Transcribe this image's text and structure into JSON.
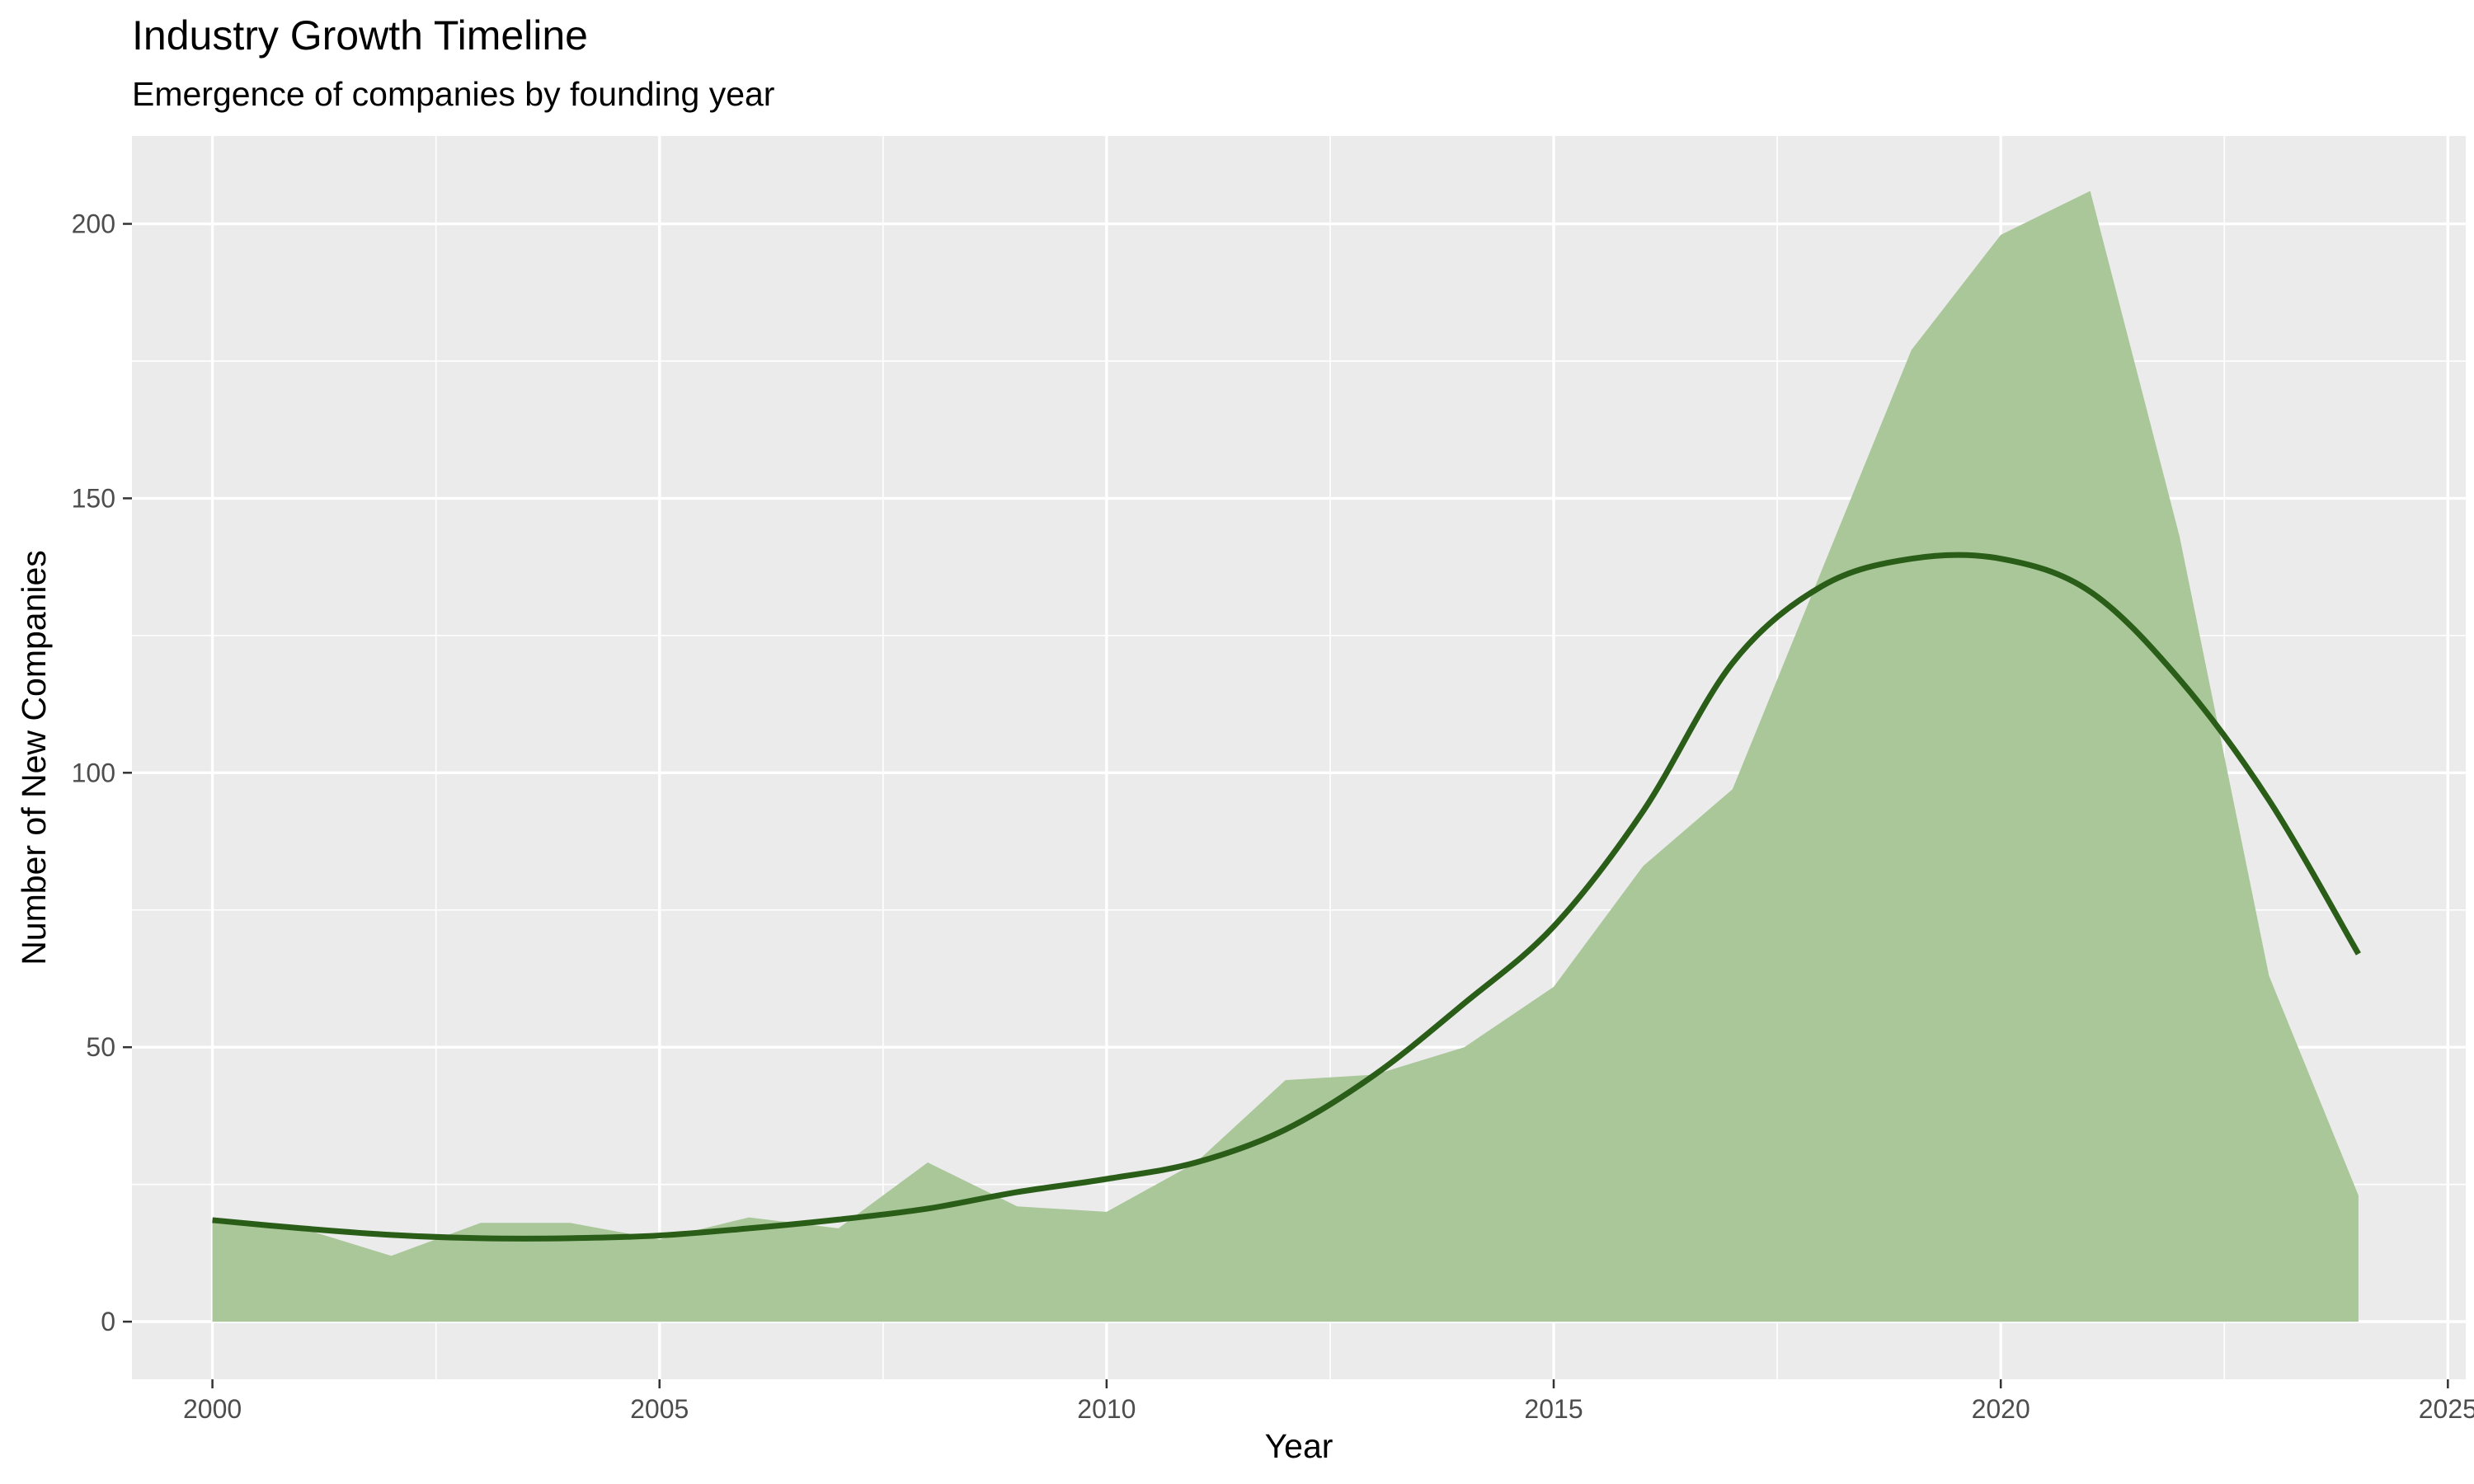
{
  "chart_data": {
    "type": "area",
    "title": "Industry Growth Timeline",
    "subtitle": "Emergence of companies by founding year",
    "xlabel": "Year",
    "ylabel": "Number of New Companies",
    "xlim": [
      1999.1,
      2025.2
    ],
    "ylim": [
      -10.5,
      216
    ],
    "x_ticks": [
      2000,
      2005,
      2010,
      2015,
      2020,
      2025
    ],
    "y_ticks": [
      0,
      50,
      100,
      150,
      200
    ],
    "grid": true,
    "legend": "none",
    "series": [
      {
        "type": "area",
        "color": "#a9c799",
        "x": [
          2000,
          2001,
          2002,
          2003,
          2004,
          2005,
          2006,
          2007,
          2008,
          2009,
          2010,
          2011,
          2012,
          2013,
          2014,
          2015,
          2016,
          2017,
          2018,
          2019,
          2020,
          2021,
          2022,
          2023,
          2024
        ],
        "y": [
          18,
          17,
          12,
          18,
          18,
          15,
          19,
          17,
          29,
          21,
          20,
          29,
          44,
          45,
          50,
          61,
          83,
          97,
          137,
          177,
          198,
          206,
          143,
          63,
          23
        ]
      },
      {
        "type": "smooth",
        "color": "#2a5e18",
        "x": [
          2000,
          2001,
          2002,
          2003,
          2004,
          2005,
          2006,
          2007,
          2008,
          2009,
          2010,
          2011,
          2012,
          2013,
          2014,
          2015,
          2016,
          2017,
          2018,
          2019,
          2020,
          2021,
          2022,
          2023,
          2024
        ],
        "y": [
          18.5,
          17,
          15.8,
          15.2,
          15.2,
          15.7,
          17,
          18.6,
          20.6,
          23.6,
          26,
          29,
          35,
          45,
          58,
          72,
          93,
          120,
          134,
          139,
          139,
          133,
          117,
          95,
          67
        ]
      }
    ]
  }
}
